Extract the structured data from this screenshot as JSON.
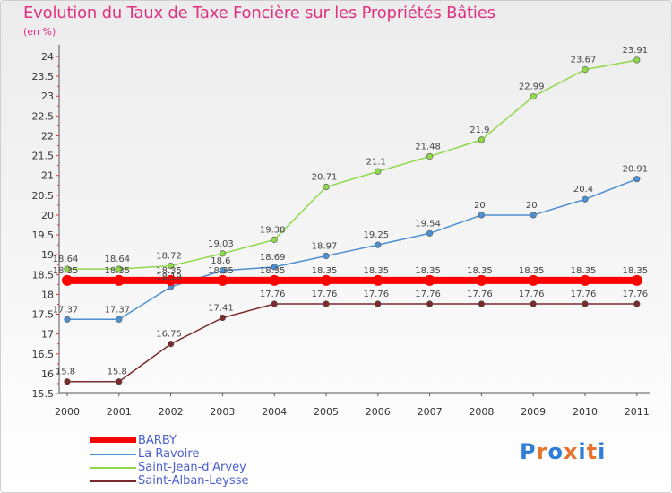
{
  "title": "Evolution du Taux de Taxe Foncière sur les Propriétés Bâties",
  "y_unit": "(en %)",
  "logo": {
    "text": "Proxiti",
    "colors": [
      "#2f7fd8",
      "#e8742e",
      "#2f7fd8",
      "#e8742e",
      "#2f7fd8",
      "#e8742e",
      "#2f7fd8"
    ]
  },
  "chart_data": {
    "type": "line",
    "title": "Evolution du Taux de Taxe Foncière sur les Propriétés Bâties",
    "ylabel": "(en %)",
    "xlabel": "",
    "x": [
      "2000",
      "2001",
      "2002",
      "2003",
      "2004",
      "2005",
      "2006",
      "2007",
      "2008",
      "2009",
      "2010",
      "2011"
    ],
    "ylim": [
      15.5,
      24
    ],
    "yticks": [
      "15.5",
      "16",
      "16.5",
      "17",
      "17.5",
      "18",
      "18.5",
      "19",
      "19.5",
      "20",
      "20.5",
      "21",
      "21.5",
      "22",
      "22.5",
      "23",
      "23.5",
      "24"
    ],
    "grid": false,
    "legend_position": "bottom-left",
    "series": [
      {
        "name": "BARBY",
        "color": "#ff0000",
        "values": [
          18.35,
          18.35,
          18.35,
          18.35,
          18.35,
          18.35,
          18.35,
          18.35,
          18.35,
          18.35,
          18.35,
          18.35
        ],
        "labels": [
          "18.35",
          "18.35",
          "18.35",
          "18.35",
          "18.35",
          "18.35",
          "18.35",
          "18.35",
          "18.35",
          "18.35",
          "18.35",
          "18.35"
        ]
      },
      {
        "name": "La Ravoire",
        "color": "#4d8fd0",
        "values": [
          17.37,
          17.37,
          18.19,
          18.6,
          18.69,
          18.97,
          19.25,
          19.54,
          20,
          20,
          20.4,
          20.91
        ],
        "labels": [
          "17.37",
          "17.37",
          "18.19",
          "18.6",
          "18.69",
          "18.97",
          "19.25",
          "19.54",
          "20",
          "20",
          "20.4",
          "20.91"
        ]
      },
      {
        "name": "Saint-Jean-d'Arvey",
        "color": "#8ed84a",
        "values": [
          18.64,
          18.64,
          18.72,
          19.03,
          19.38,
          20.71,
          21.1,
          21.48,
          21.9,
          22.99,
          23.67,
          23.91
        ],
        "labels": [
          "18.64",
          "18.64",
          "18.72",
          "19.03",
          "19.38",
          "20.71",
          "21.1",
          "21.48",
          "21.9",
          "22.99",
          "23.67",
          "23.91"
        ]
      },
      {
        "name": "Saint-Alban-Leysse",
        "color": "#7a2a2a",
        "values": [
          15.8,
          15.8,
          16.75,
          17.41,
          17.76,
          17.76,
          17.76,
          17.76,
          17.76,
          17.76,
          17.76,
          17.76
        ],
        "labels": [
          "15.8",
          "15.8",
          "16.75",
          "17.41",
          "17.76",
          "17.76",
          "17.76",
          "17.76",
          "17.76",
          "17.76",
          "17.76",
          "17.76"
        ]
      }
    ]
  }
}
